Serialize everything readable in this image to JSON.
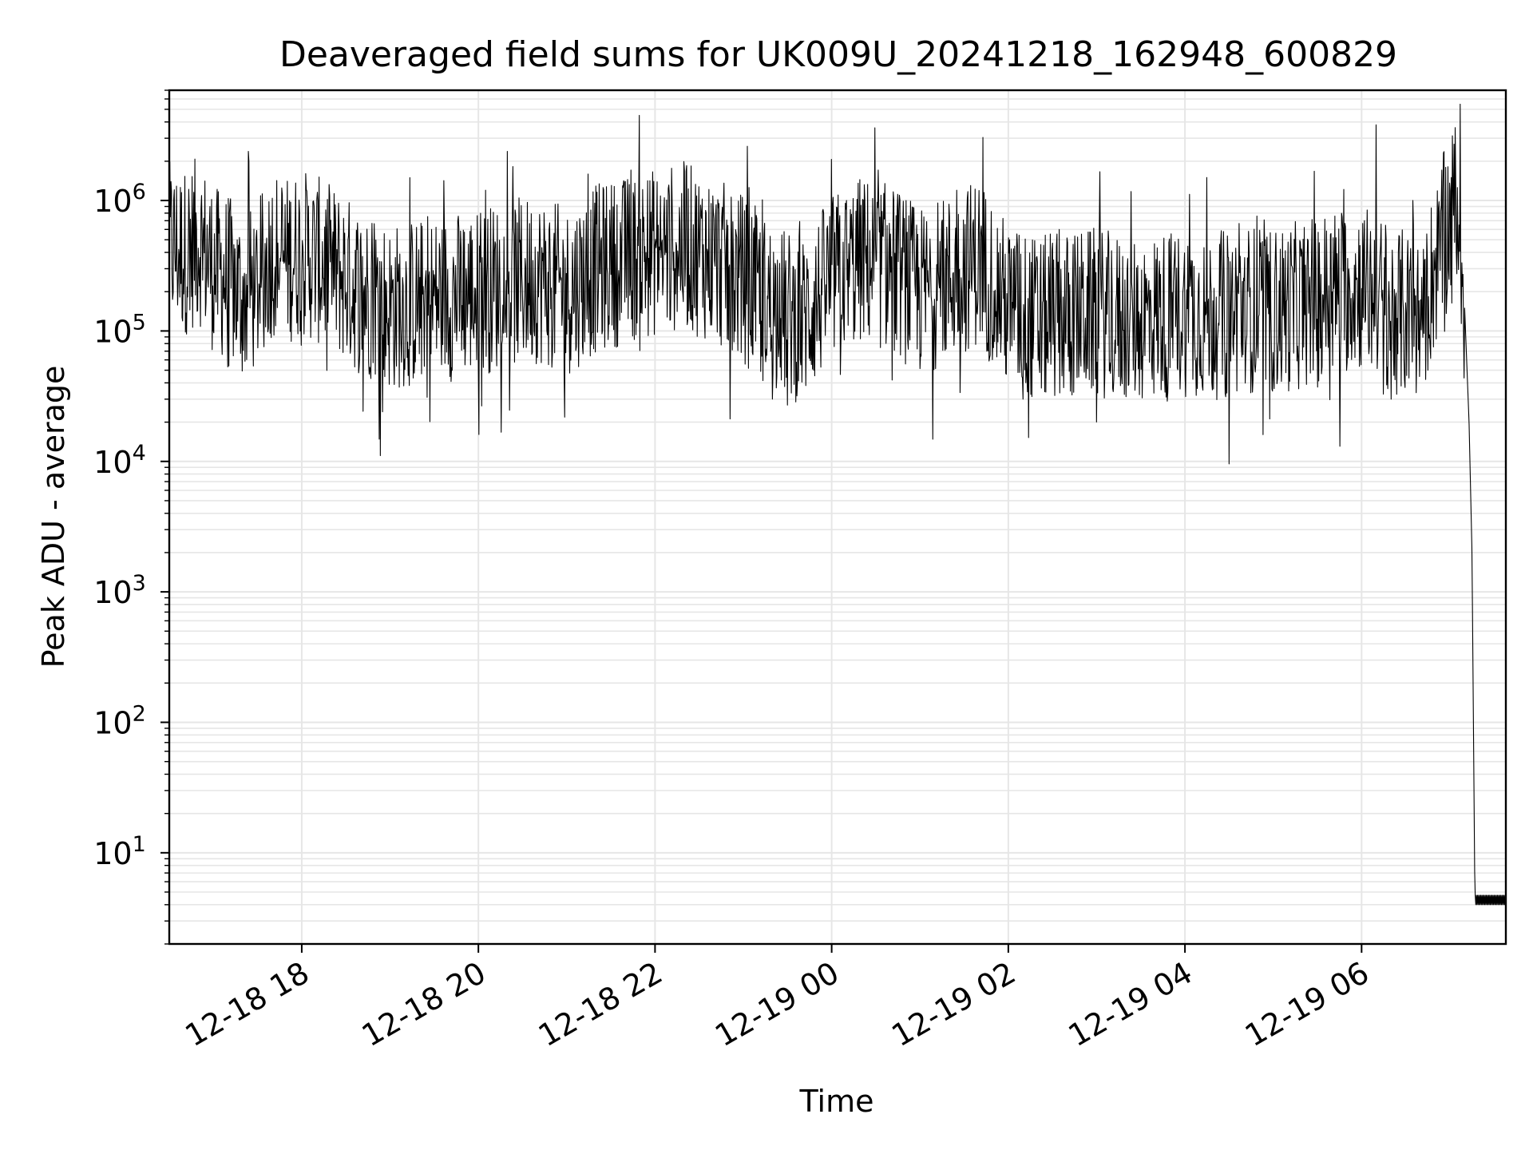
{
  "chart_data": {
    "type": "line",
    "title": "Deaveraged field sums for UK009U_20241218_162948_600829",
    "xlabel": "Time",
    "ylabel": "Peak ADU - average",
    "yscale": "log",
    "ylim": [
      2,
      7000000
    ],
    "xlim": [
      "2024-12-18 16:30",
      "2024-12-19 07:38"
    ],
    "grid": true,
    "line_color": "#000000",
    "grid_color": "#e6e6e6",
    "x_ticks": [
      "12-18 18",
      "12-18 20",
      "12-18 22",
      "12-19 00",
      "12-19 02",
      "12-19 04",
      "12-19 06"
    ],
    "x_tick_times": [
      "2024-12-18 18:00",
      "2024-12-18 20:00",
      "2024-12-18 22:00",
      "2024-12-19 00:00",
      "2024-12-19 02:00",
      "2024-12-19 04:00",
      "2024-12-19 06:00"
    ],
    "y_ticks": [
      {
        "value": 10,
        "base": "10",
        "exp": "1"
      },
      {
        "value": 100,
        "base": "10",
        "exp": "2"
      },
      {
        "value": 1000,
        "base": "10",
        "exp": "3"
      },
      {
        "value": 10000,
        "base": "10",
        "exp": "4"
      },
      {
        "value": 100000,
        "base": "10",
        "exp": "5"
      },
      {
        "value": 1000000,
        "base": "10",
        "exp": "6"
      }
    ],
    "series": [
      {
        "x": [
          "2024-12-18 16:30",
          "2024-12-18 16:40",
          "2024-12-18 16:50",
          "2024-12-18 17:00",
          "2024-12-18 17:10",
          "2024-12-18 17:20",
          "2024-12-18 17:30",
          "2024-12-18 17:40",
          "2024-12-18 17:50",
          "2024-12-18 18:00",
          "2024-12-18 18:10",
          "2024-12-18 18:20",
          "2024-12-18 18:30",
          "2024-12-18 18:40",
          "2024-12-18 18:50",
          "2024-12-18 19:00",
          "2024-12-18 19:20",
          "2024-12-18 19:40",
          "2024-12-18 20:00",
          "2024-12-18 20:20",
          "2024-12-18 20:40",
          "2024-12-18 21:00",
          "2024-12-18 21:20",
          "2024-12-18 21:40",
          "2024-12-18 22:00",
          "2024-12-18 22:20",
          "2024-12-18 22:40",
          "2024-12-18 23:00",
          "2024-12-18 23:20",
          "2024-12-18 23:40",
          "2024-12-19 00:00",
          "2024-12-19 00:20",
          "2024-12-19 00:40",
          "2024-12-19 01:00",
          "2024-12-19 01:20",
          "2024-12-19 01:40",
          "2024-12-19 02:00",
          "2024-12-19 02:20",
          "2024-12-19 02:40",
          "2024-12-19 03:00",
          "2024-12-19 03:20",
          "2024-12-19 03:40",
          "2024-12-19 04:00",
          "2024-12-19 04:20",
          "2024-12-19 04:40",
          "2024-12-19 05:00",
          "2024-12-19 05:20",
          "2024-12-19 05:40",
          "2024-12-19 06:00",
          "2024-12-19 06:20",
          "2024-12-19 06:40",
          "2024-12-19 06:55",
          "2024-12-19 07:05",
          "2024-12-19 07:10",
          "2024-12-19 07:13",
          "2024-12-19 07:15",
          "2024-12-19 07:17",
          "2024-12-19 07:20",
          "2024-12-19 07:38"
        ],
        "y": [
          450000,
          400000,
          500000,
          300000,
          250000,
          180000,
          220000,
          400000,
          350000,
          400000,
          350000,
          300000,
          250000,
          200000,
          180000,
          150000,
          170000,
          180000,
          200000,
          230000,
          250000,
          200000,
          300000,
          350000,
          400000,
          450000,
          350000,
          250000,
          150000,
          120000,
          250000,
          350000,
          300000,
          200000,
          250000,
          350000,
          150000,
          120000,
          130000,
          140000,
          120000,
          130000,
          140000,
          130000,
          150000,
          140000,
          160000,
          200000,
          220000,
          150000,
          120000,
          500000,
          1000000,
          150000,
          20000,
          2000,
          4,
          4,
          4
        ],
        "peaks": [
          {
            "x": "2024-12-18 17:24",
            "y": 2000000
          },
          {
            "x": "2024-12-18 20:05",
            "y": 1200000
          },
          {
            "x": "2024-12-18 21:40",
            "y": 1400000
          },
          {
            "x": "2024-12-18 22:20",
            "y": 1700000
          },
          {
            "x": "2024-12-19 01:25",
            "y": 1200000
          },
          {
            "x": "2024-12-19 04:15",
            "y": 1500000
          },
          {
            "x": "2024-12-19 06:10",
            "y": 3800000
          },
          {
            "x": "2024-12-19 06:35",
            "y": 1000000
          },
          {
            "x": "2024-12-19 07:01",
            "y": 1500000
          }
        ],
        "troughs": [
          {
            "x": "2024-12-18 18:55",
            "y": 24000
          },
          {
            "x": "2024-12-18 19:25",
            "y": 31000
          },
          {
            "x": "2024-12-18 23:30",
            "y": 27000
          },
          {
            "x": "2024-12-19 02:10",
            "y": 30000
          },
          {
            "x": "2024-12-19 06:20",
            "y": 30000
          }
        ]
      }
    ]
  }
}
